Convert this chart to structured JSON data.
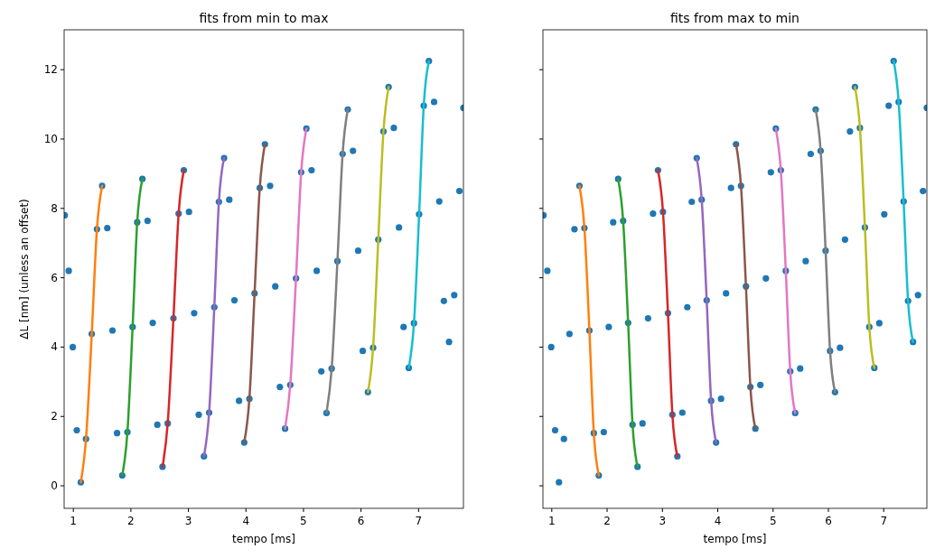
{
  "chart_data": [
    {
      "type": "scatter",
      "title": "fits from min to max",
      "xlabel": "tempo [ms]",
      "ylabel": "ΔL [nm]  (unless an offset)",
      "xlim": [
        0.84,
        7.78
      ],
      "ylim": [
        -0.65,
        13.15
      ],
      "xticks": [
        1,
        2,
        3,
        4,
        5,
        6,
        7
      ],
      "yticks": [
        0,
        2,
        4,
        6,
        8,
        10,
        12
      ],
      "grid": false,
      "series": [
        {
          "marker": "circle",
          "color": "#1f77b4",
          "x": [
            0.85,
            0.92,
            0.99,
            1.06,
            1.13,
            1.22,
            1.32,
            1.41,
            1.5,
            1.59,
            1.68,
            1.76,
            1.85,
            1.94,
            2.03,
            2.11,
            2.2,
            2.29,
            2.38,
            2.46,
            2.55,
            2.64,
            2.74,
            2.83,
            2.92,
            3.01,
            3.1,
            3.18,
            3.27,
            3.36,
            3.45,
            3.53,
            3.62,
            3.71,
            3.8,
            3.88,
            3.97,
            4.06,
            4.15,
            4.24,
            4.33,
            4.42,
            4.51,
            4.59,
            4.68,
            4.77,
            4.87,
            4.96,
            5.05,
            5.14,
            5.23,
            5.31,
            5.4,
            5.49,
            5.59,
            5.68,
            5.77,
            5.86,
            5.95,
            6.03,
            6.12,
            6.21,
            6.3,
            6.39,
            6.48,
            6.57,
            6.66,
            6.74,
            6.83,
            6.92,
            7.01,
            7.09,
            7.18,
            7.27,
            7.36,
            7.44,
            7.53,
            7.62,
            7.71,
            7.78
          ],
          "values": [
            7.8,
            6.2,
            4.0,
            1.6,
            0.1,
            1.35,
            4.38,
            7.4,
            8.65,
            7.43,
            4.48,
            1.52,
            0.3,
            1.55,
            4.58,
            7.6,
            8.85,
            7.64,
            4.7,
            1.76,
            0.55,
            1.8,
            4.83,
            7.85,
            9.1,
            7.9,
            4.98,
            2.05,
            0.85,
            2.11,
            5.15,
            8.19,
            9.45,
            8.25,
            5.35,
            2.45,
            1.25,
            2.51,
            5.55,
            8.59,
            9.85,
            8.65,
            5.75,
            2.85,
            1.65,
            2.91,
            5.98,
            9.04,
            10.3,
            9.1,
            6.2,
            3.3,
            2.1,
            3.38,
            6.48,
            9.57,
            10.85,
            9.66,
            6.78,
            3.89,
            2.7,
            3.98,
            7.1,
            10.22,
            11.5,
            10.32,
            7.45,
            4.58,
            3.4,
            4.69,
            7.83,
            10.96,
            12.25,
            11.07,
            8.2,
            5.33,
            4.15,
            5.5,
            8.5,
            10.9
          ]
        },
        {
          "type": "line",
          "color": "#ff7f0e",
          "x": [
            1.13,
            1.22,
            1.32,
            1.41,
            1.5
          ],
          "values": [
            0.1,
            1.35,
            4.38,
            7.4,
            8.65
          ]
        },
        {
          "type": "line",
          "color": "#2ca02c",
          "x": [
            1.85,
            1.94,
            2.03,
            2.11,
            2.2
          ],
          "values": [
            0.3,
            1.55,
            4.58,
            7.6,
            8.85
          ]
        },
        {
          "type": "line",
          "color": "#d62728",
          "x": [
            2.55,
            2.64,
            2.74,
            2.83,
            2.92
          ],
          "values": [
            0.55,
            1.8,
            4.83,
            7.85,
            9.1
          ]
        },
        {
          "type": "line",
          "color": "#9467bd",
          "x": [
            3.27,
            3.36,
            3.45,
            3.53,
            3.62
          ],
          "values": [
            0.85,
            2.11,
            5.15,
            8.19,
            9.45
          ]
        },
        {
          "type": "line",
          "color": "#8c564b",
          "x": [
            3.97,
            4.06,
            4.15,
            4.24,
            4.33
          ],
          "values": [
            1.25,
            2.51,
            5.55,
            8.59,
            9.85
          ]
        },
        {
          "type": "line",
          "color": "#e377c2",
          "x": [
            4.68,
            4.77,
            4.87,
            4.96,
            5.05
          ],
          "values": [
            1.65,
            2.91,
            5.98,
            9.04,
            10.3
          ]
        },
        {
          "type": "line",
          "color": "#7f7f7f",
          "x": [
            5.4,
            5.49,
            5.59,
            5.68,
            5.77
          ],
          "values": [
            2.1,
            3.38,
            6.48,
            9.57,
            10.85
          ]
        },
        {
          "type": "line",
          "color": "#bcbd22",
          "x": [
            6.12,
            6.21,
            6.3,
            6.39,
            6.48
          ],
          "values": [
            2.7,
            3.98,
            7.1,
            10.22,
            11.5
          ]
        },
        {
          "type": "line",
          "color": "#17becf",
          "x": [
            6.83,
            6.92,
            7.01,
            7.09,
            7.18
          ],
          "values": [
            3.4,
            4.69,
            7.83,
            10.96,
            12.25
          ]
        }
      ]
    },
    {
      "type": "scatter",
      "title": "fits from max to min",
      "xlabel": "tempo [ms]",
      "xlim": [
        0.84,
        7.78
      ],
      "ylim": [
        -0.65,
        13.15
      ],
      "xticks": [
        1,
        2,
        3,
        4,
        5,
        6,
        7
      ],
      "yticks": [
        0,
        2,
        4,
        6,
        8,
        10,
        12
      ],
      "tick_labels": "x",
      "grid": false,
      "series": [
        {
          "marker": "circle",
          "color": "#1f77b4",
          "x": [
            0.85,
            0.92,
            0.99,
            1.06,
            1.13,
            1.22,
            1.32,
            1.41,
            1.5,
            1.59,
            1.68,
            1.76,
            1.85,
            1.94,
            2.03,
            2.11,
            2.2,
            2.29,
            2.38,
            2.46,
            2.55,
            2.64,
            2.74,
            2.83,
            2.92,
            3.01,
            3.1,
            3.18,
            3.27,
            3.36,
            3.45,
            3.53,
            3.62,
            3.71,
            3.8,
            3.88,
            3.97,
            4.06,
            4.15,
            4.24,
            4.33,
            4.42,
            4.51,
            4.59,
            4.68,
            4.77,
            4.87,
            4.96,
            5.05,
            5.14,
            5.23,
            5.31,
            5.4,
            5.49,
            5.59,
            5.68,
            5.77,
            5.86,
            5.95,
            6.03,
            6.12,
            6.21,
            6.3,
            6.39,
            6.48,
            6.57,
            6.66,
            6.74,
            6.83,
            6.92,
            7.01,
            7.09,
            7.18,
            7.27,
            7.36,
            7.44,
            7.53,
            7.62,
            7.71,
            7.78
          ],
          "values": [
            7.8,
            6.2,
            4.0,
            1.6,
            0.1,
            1.35,
            4.38,
            7.4,
            8.65,
            7.43,
            4.48,
            1.52,
            0.3,
            1.55,
            4.58,
            7.6,
            8.85,
            7.64,
            4.7,
            1.76,
            0.55,
            1.8,
            4.83,
            7.85,
            9.1,
            7.9,
            4.98,
            2.05,
            0.85,
            2.11,
            5.15,
            8.19,
            9.45,
            8.25,
            5.35,
            2.45,
            1.25,
            2.51,
            5.55,
            8.59,
            9.85,
            8.65,
            5.75,
            2.85,
            1.65,
            2.91,
            5.98,
            9.04,
            10.3,
            9.1,
            6.2,
            3.3,
            2.1,
            3.38,
            6.48,
            9.57,
            10.85,
            9.66,
            6.78,
            3.89,
            2.7,
            3.98,
            7.1,
            10.22,
            11.5,
            10.32,
            7.45,
            4.58,
            3.4,
            4.69,
            7.83,
            10.96,
            12.25,
            11.07,
            8.2,
            5.33,
            4.15,
            5.5,
            8.5,
            10.9
          ]
        },
        {
          "type": "line",
          "color": "#ff7f0e",
          "x": [
            1.5,
            1.59,
            1.68,
            1.76,
            1.85
          ],
          "values": [
            8.65,
            7.43,
            4.48,
            1.52,
            0.3
          ]
        },
        {
          "type": "line",
          "color": "#2ca02c",
          "x": [
            2.2,
            2.29,
            2.38,
            2.46,
            2.55
          ],
          "values": [
            8.85,
            7.64,
            4.7,
            1.76,
            0.55
          ]
        },
        {
          "type": "line",
          "color": "#d62728",
          "x": [
            2.92,
            3.01,
            3.1,
            3.18,
            3.27
          ],
          "values": [
            9.1,
            7.9,
            4.98,
            2.05,
            0.85
          ]
        },
        {
          "type": "line",
          "color": "#9467bd",
          "x": [
            3.62,
            3.71,
            3.8,
            3.88,
            3.97
          ],
          "values": [
            9.45,
            8.25,
            5.35,
            2.45,
            1.25
          ]
        },
        {
          "type": "line",
          "color": "#8c564b",
          "x": [
            4.33,
            4.42,
            4.51,
            4.59,
            4.68
          ],
          "values": [
            9.85,
            8.65,
            5.75,
            2.85,
            1.65
          ]
        },
        {
          "type": "line",
          "color": "#e377c2",
          "x": [
            5.05,
            5.14,
            5.23,
            5.31,
            5.4
          ],
          "values": [
            10.3,
            9.1,
            6.2,
            3.3,
            2.1
          ]
        },
        {
          "type": "line",
          "color": "#7f7f7f",
          "x": [
            5.77,
            5.86,
            5.95,
            6.03,
            6.12
          ],
          "values": [
            10.85,
            9.66,
            6.78,
            3.89,
            2.7
          ]
        },
        {
          "type": "line",
          "color": "#bcbd22",
          "x": [
            6.48,
            6.57,
            6.66,
            6.74,
            6.83
          ],
          "values": [
            11.5,
            10.32,
            7.45,
            4.58,
            3.4
          ]
        },
        {
          "type": "line",
          "color": "#17becf",
          "x": [
            7.18,
            7.27,
            7.36,
            7.44,
            7.53
          ],
          "values": [
            12.25,
            11.07,
            8.2,
            5.33,
            4.15
          ]
        }
      ]
    }
  ]
}
